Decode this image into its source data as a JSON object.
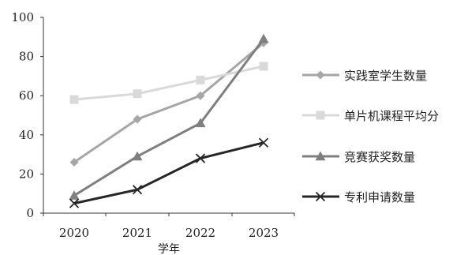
{
  "chart_data": {
    "type": "line",
    "x": [
      "2020",
      "2021",
      "2022",
      "2023"
    ],
    "xlabel": "学年",
    "ylabel": "",
    "ylim": [
      0,
      100
    ],
    "yticks": [
      0,
      20,
      40,
      60,
      80,
      100
    ],
    "grid": false,
    "legend_position": "right",
    "series": [
      {
        "name": "实践室学生数量",
        "values": [
          26,
          48,
          60,
          87
        ],
        "color": "#a6a6a6",
        "marker": "diamond"
      },
      {
        "name": "单片机课程平均分",
        "values": [
          58,
          61,
          68,
          75
        ],
        "color": "#d9d9d9",
        "marker": "square"
      },
      {
        "name": "竞赛获奖数量",
        "values": [
          9,
          29,
          46,
          89
        ],
        "color": "#7f7f7f",
        "marker": "triangle"
      },
      {
        "name": "专利申请数量",
        "values": [
          5,
          12,
          28,
          36
        ],
        "color": "#262626",
        "marker": "x"
      }
    ]
  }
}
